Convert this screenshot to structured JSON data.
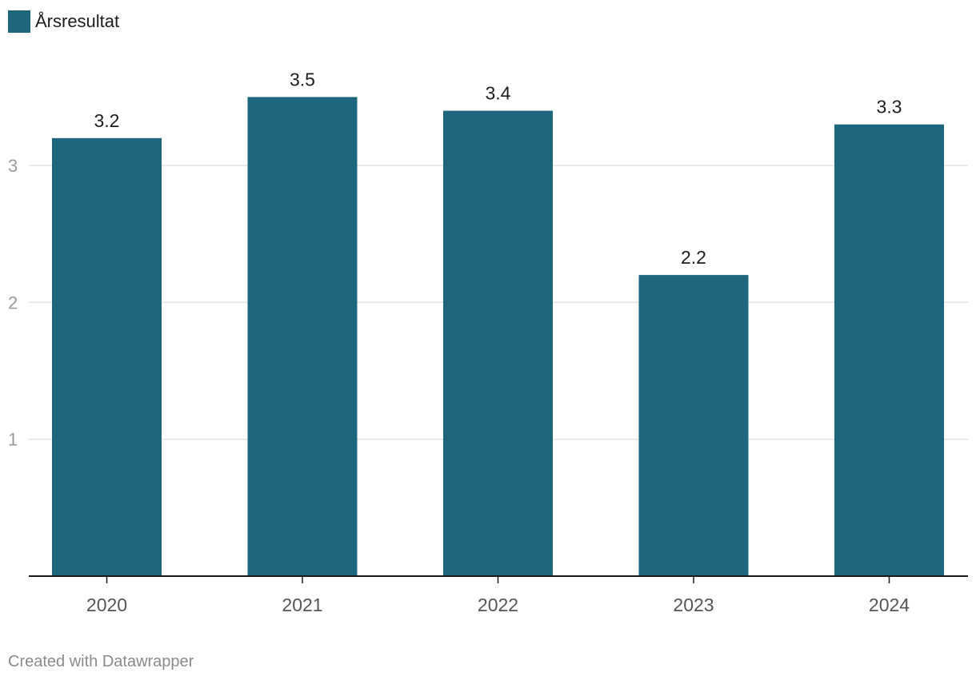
{
  "legend": {
    "label": "Årsresultat"
  },
  "footer": {
    "credit": "Created with Datawrapper"
  },
  "colors": {
    "bar": "#1d667d",
    "grid": "#e3e3e3",
    "axis": "#1a1a1a",
    "tick_text": "#9a9a9a",
    "category_text": "#555555",
    "value_text": "#1d1d1d"
  },
  "chart_data": {
    "type": "bar",
    "categories": [
      "2020",
      "2021",
      "2022",
      "2023",
      "2024"
    ],
    "series": [
      {
        "name": "Årsresultat",
        "values": [
          3.2,
          3.5,
          3.4,
          2.2,
          3.3
        ]
      }
    ],
    "value_labels": [
      "3.2",
      "3.5",
      "3.4",
      "2.2",
      "3.3"
    ],
    "yticks": [
      1,
      2,
      3
    ],
    "ylim": [
      0,
      3.5
    ],
    "grid": true,
    "legend_position": "top-left"
  }
}
